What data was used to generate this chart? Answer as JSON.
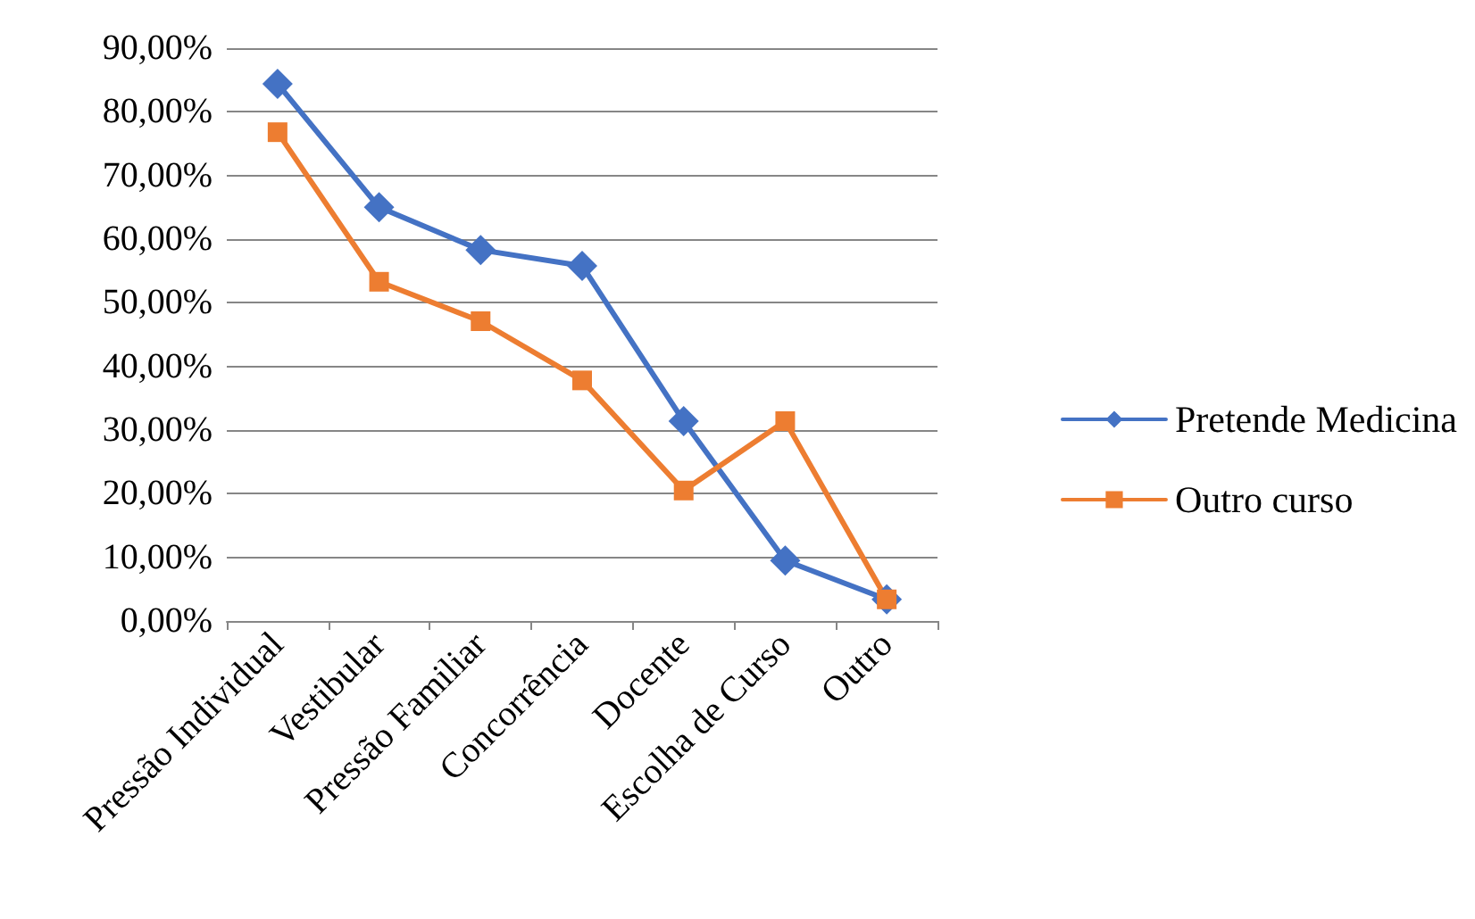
{
  "chart_data": {
    "type": "line",
    "categories": [
      "Pressão Individual",
      "Vestibular",
      "Pressão Familiar",
      "Concorrência",
      "Docente",
      "Escolha de Curso",
      "Outro"
    ],
    "series": [
      {
        "name": "Pretende Medicina",
        "color": "#4472c4",
        "marker": "diamond",
        "values": [
          84.4,
          65.0,
          58.3,
          55.8,
          31.4,
          9.5,
          3.4
        ]
      },
      {
        "name": "Outro curso",
        "color": "#ed7d31",
        "marker": "square",
        "values": [
          76.8,
          53.3,
          47.1,
          37.8,
          20.5,
          31.4,
          3.4
        ]
      }
    ],
    "ylim": [
      0,
      90
    ],
    "yticks": [
      {
        "value": 0,
        "label": "0,00%"
      },
      {
        "value": 10,
        "label": "10,00%"
      },
      {
        "value": 20,
        "label": "20,00%"
      },
      {
        "value": 30,
        "label": "30,00%"
      },
      {
        "value": 40,
        "label": "40,00%"
      },
      {
        "value": 50,
        "label": "50,00%"
      },
      {
        "value": 60,
        "label": "60,00%"
      },
      {
        "value": 70,
        "label": "70,00%"
      },
      {
        "value": 80,
        "label": "80,00%"
      },
      {
        "value": 90,
        "label": "90,00%"
      }
    ],
    "grid": "y",
    "legend": "right",
    "line_style": "solid"
  }
}
